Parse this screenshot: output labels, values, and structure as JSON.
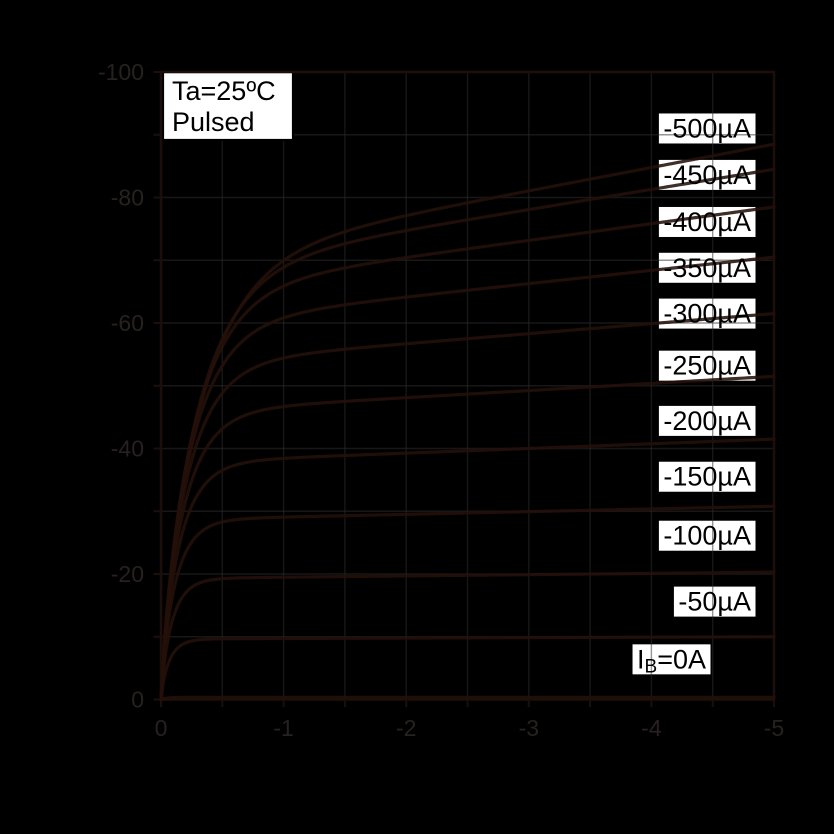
{
  "chart_data": {
    "type": "line",
    "description": "Transistor collector characteristics: collector current vs collector-emitter voltage for stepped base currents",
    "annotation_box": {
      "lines": [
        "Ta=25ºC",
        "Pulsed"
      ]
    },
    "x_axis": {
      "tick_labels": [
        "0",
        "-1",
        "-2",
        "-3",
        "-4",
        "-5"
      ],
      "tick_values": [
        0,
        1,
        2,
        3,
        4,
        5
      ],
      "minor_step": 0.5,
      "range_display": [
        0,
        -5
      ]
    },
    "y_axis": {
      "tick_labels": [
        "0",
        "-20",
        "-40",
        "-60",
        "-80",
        "-100"
      ],
      "tick_values": [
        0,
        20,
        40,
        60,
        80,
        100
      ],
      "minor_step": 10,
      "range_display": [
        0,
        -100
      ]
    },
    "grid": true,
    "legend_position": "right-inside",
    "series": [
      {
        "name": "IB=-500uA",
        "label": "-500µA",
        "sat_value": 88.5,
        "knee_v": 0.36,
        "slope": 0.042,
        "label_center_i": 91.0
      },
      {
        "name": "IB=-450uA",
        "label": "-450µA",
        "sat_value": 84.5,
        "knee_v": 0.33,
        "slope": 0.038,
        "label_center_i": 83.6
      },
      {
        "name": "IB=-400uA",
        "label": "-400µA",
        "sat_value": 78.5,
        "knee_v": 0.3,
        "slope": 0.034,
        "label_center_i": 76.1
      },
      {
        "name": "IB=-350uA",
        "label": "-350µA",
        "sat_value": 70.5,
        "knee_v": 0.27,
        "slope": 0.03,
        "label_center_i": 68.8
      },
      {
        "name": "IB=-300uA",
        "label": "-300µA",
        "sat_value": 61.5,
        "knee_v": 0.24,
        "slope": 0.026,
        "label_center_i": 61.5
      },
      {
        "name": "IB=-250uA",
        "label": "-250µA",
        "sat_value": 51.5,
        "knee_v": 0.205,
        "slope": 0.022,
        "label_center_i": 53.2
      },
      {
        "name": "IB=-200uA",
        "label": "-200µA",
        "sat_value": 41.5,
        "knee_v": 0.17,
        "slope": 0.018,
        "label_center_i": 44.4
      },
      {
        "name": "IB=-150uA",
        "label": "-150µA",
        "sat_value": 30.8,
        "knee_v": 0.135,
        "slope": 0.014,
        "label_center_i": 35.5
      },
      {
        "name": "IB=-100uA",
        "label": "-100µA",
        "sat_value": 20.3,
        "knee_v": 0.105,
        "slope": 0.01,
        "label_center_i": 26.1
      },
      {
        "name": "IB=-50uA",
        "label": "-50µA",
        "sat_value": 10.0,
        "knee_v": 0.08,
        "slope": 0.007,
        "label_center_i": 15.6
      },
      {
        "name": "IB=0A",
        "label": "IB=0A",
        "label_parts": {
          "pre": "I",
          "sub": "B",
          "post": "=0A"
        },
        "sat_value": 0.35,
        "knee_v": 0.05,
        "slope": 0.005,
        "label_center_i": 6.4
      }
    ],
    "colors": {
      "background": "#000000",
      "grid": "#2d2d2d",
      "frame": "#1c0f0a",
      "curve": "#241009",
      "tick_text": "#272120",
      "label_box_bg": "#ffffff",
      "label_text": "#000000",
      "annotation_border": "#000000"
    }
  }
}
